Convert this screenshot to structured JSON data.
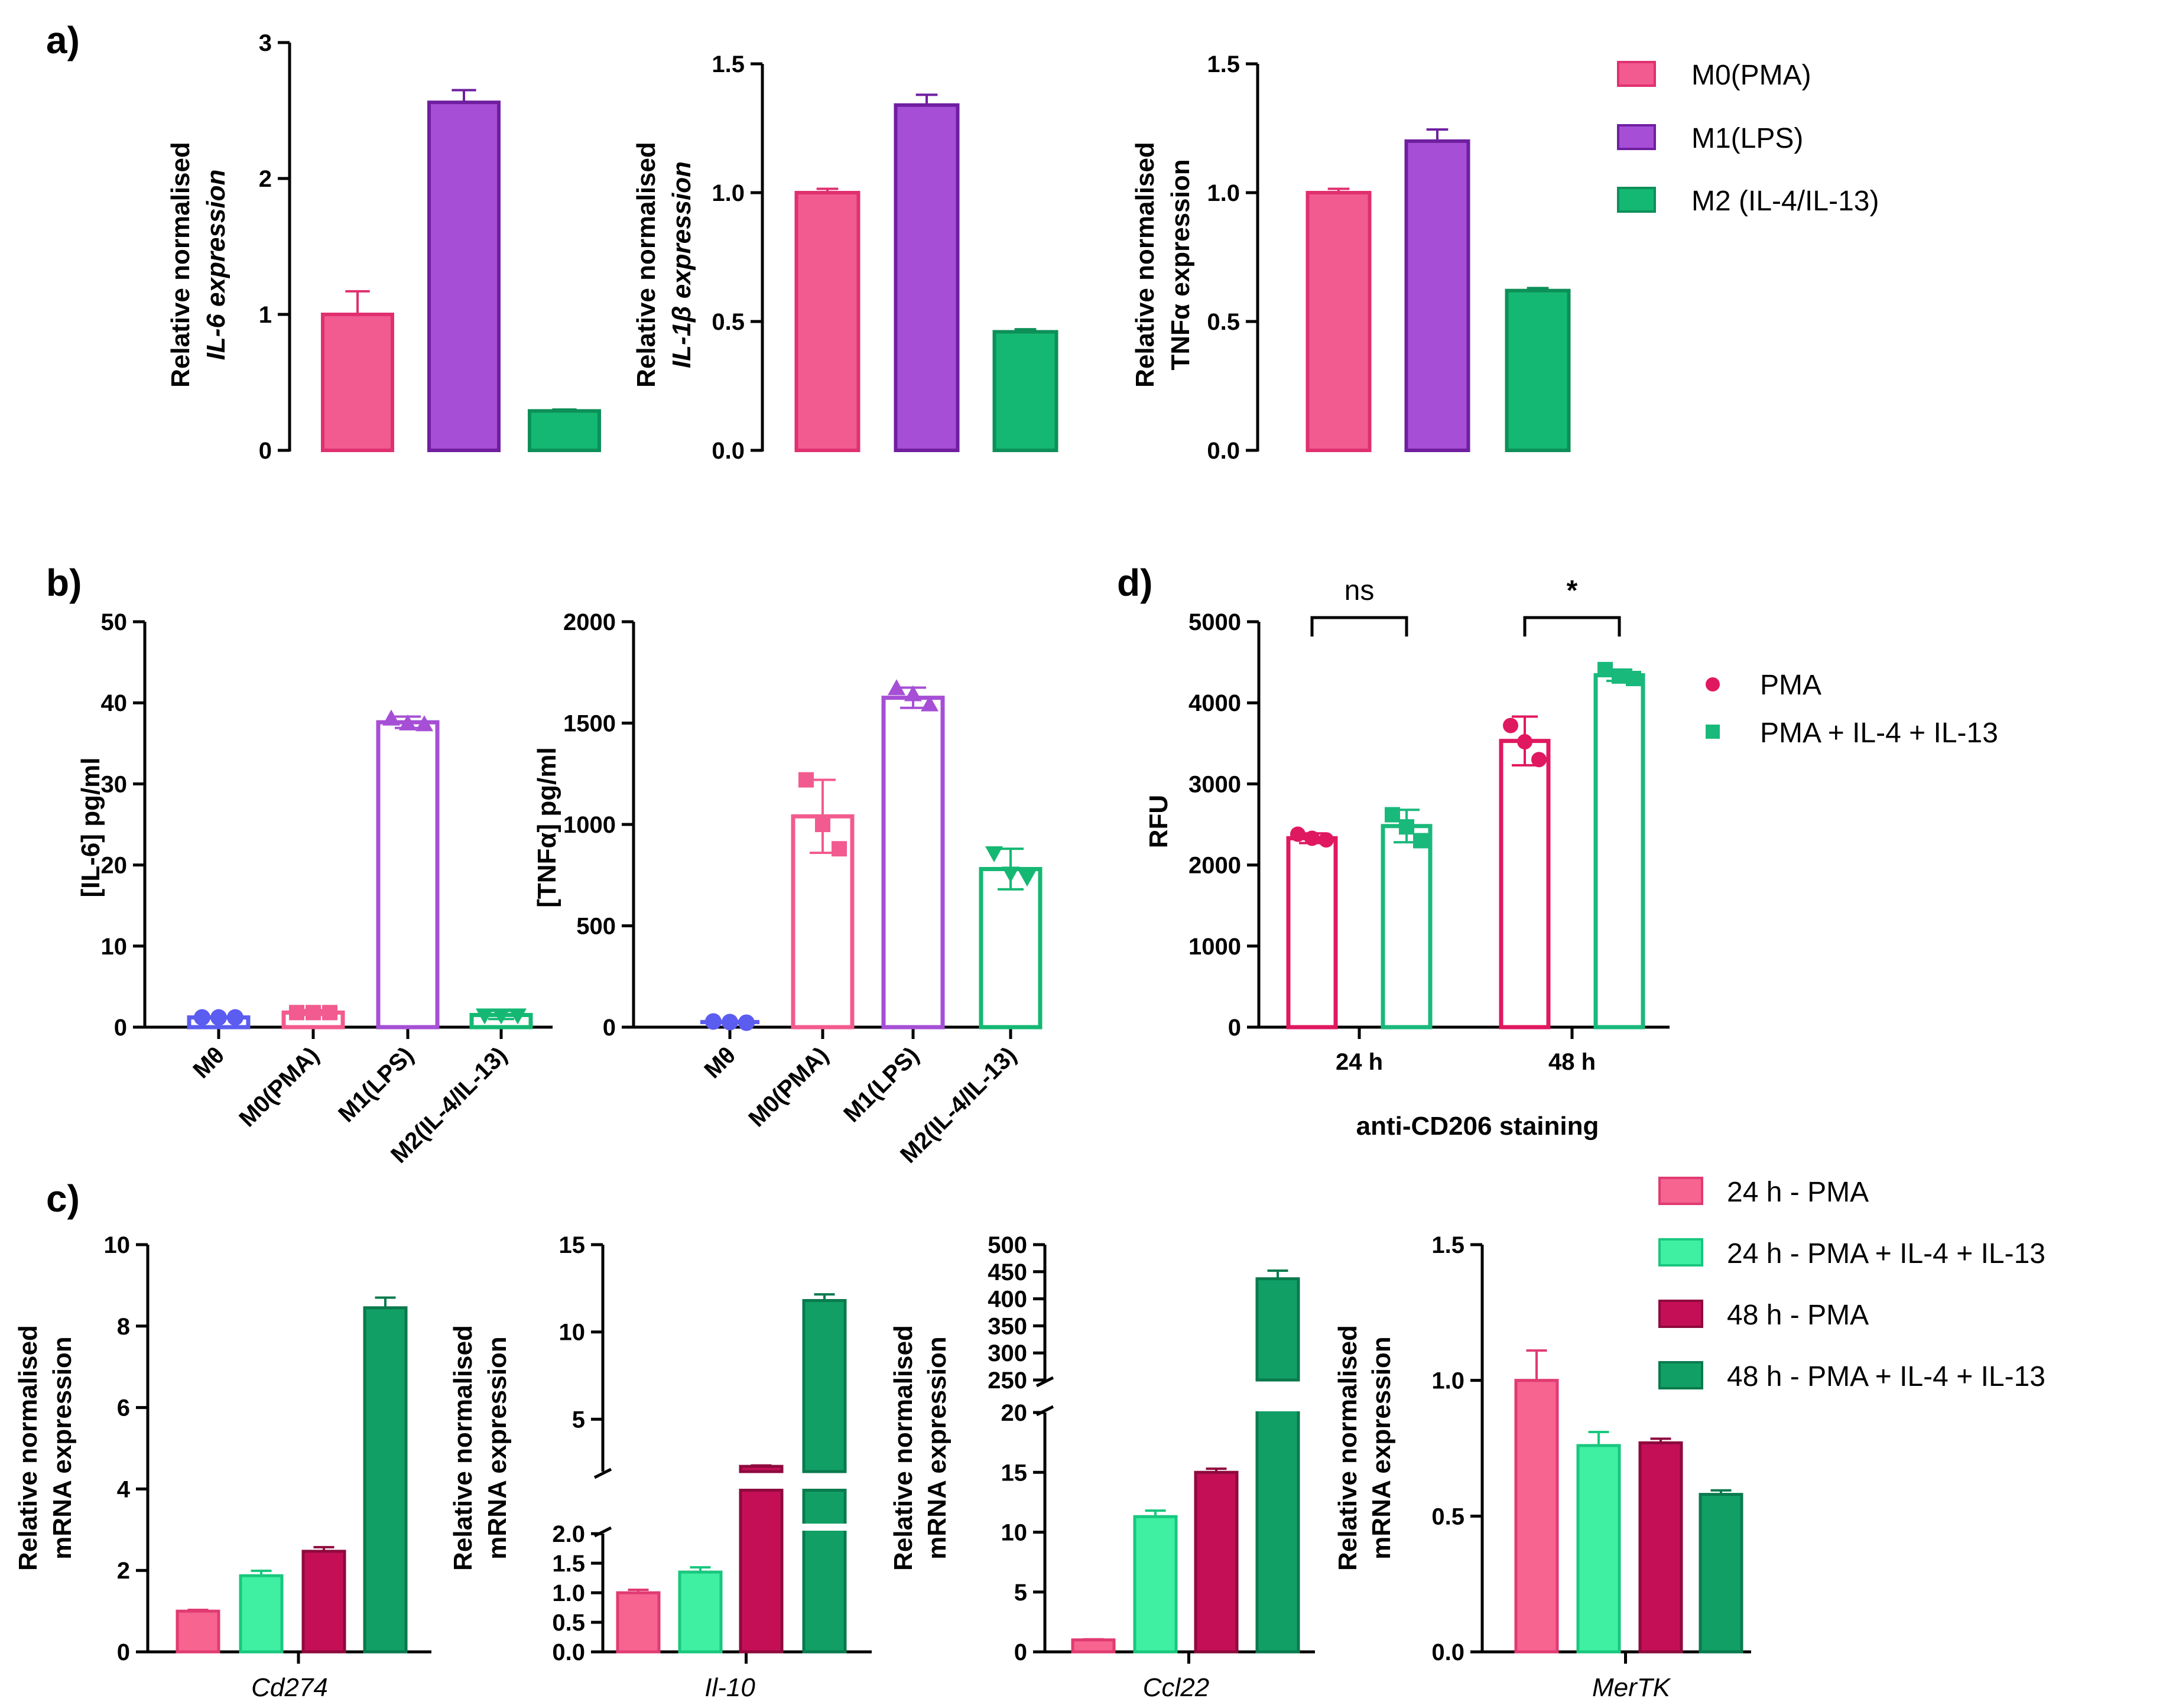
{
  "colors": {
    "m0": "#f25b8f",
    "m1": "#a64fd6",
    "m2": "#14b873",
    "mtheta": "#5b5cf0",
    "pma24": "#f6648f",
    "combo24": "#3ff0a3",
    "pma48": "#c40f56",
    "combo48": "#119f66",
    "d_pma": "#e0185f",
    "d_combo": "#19b97b"
  },
  "panel_labels": {
    "a": "a)",
    "b": "b)",
    "c": "c)",
    "d": "d)"
  },
  "legend_a": [
    "M0(PMA)",
    "M1(LPS)",
    "M2 (IL-4/IL-13)"
  ],
  "legend_c": [
    "24 h - PMA",
    "24 h - PMA + IL-4 + IL-13",
    "48 h - PMA",
    "48 h - PMA + IL-4 + IL-13"
  ],
  "legend_d": [
    "PMA",
    "PMA + IL-4 + IL-13"
  ],
  "chart_data": [
    {
      "id": "a1",
      "type": "bar",
      "ylabel_line1": "Relative normalised",
      "ylabel_line2": "IL-6 expression",
      "categories": [
        "M0(PMA)",
        "M1(LPS)",
        "M2 (IL-4/IL-13)"
      ],
      "values": [
        1.0,
        2.56,
        0.29
      ],
      "errors": [
        0.17,
        0.09,
        0.01
      ],
      "ylim": [
        0,
        3
      ],
      "yticks": [
        "0",
        "1",
        "2",
        "3"
      ]
    },
    {
      "id": "a2",
      "type": "bar",
      "ylabel_line1": "Relative normalised",
      "ylabel_line2": "IL-1β expression",
      "categories": [
        "M0(PMA)",
        "M1(LPS)",
        "M2 (IL-4/IL-13)"
      ],
      "values": [
        1.0,
        1.34,
        0.46
      ],
      "errors": [
        0.015,
        0.04,
        0.01
      ],
      "ylim": [
        0,
        1.5
      ],
      "yticks": [
        "0.0",
        "0.5",
        "1.0",
        "1.5"
      ]
    },
    {
      "id": "a3",
      "type": "bar",
      "ylabel_line1": "Relative normalised",
      "ylabel_line2": "TNFα expression",
      "categories": [
        "M0(PMA)",
        "M1(LPS)",
        "M2 (IL-4/IL-13)"
      ],
      "values": [
        1.0,
        1.2,
        0.62
      ],
      "errors": [
        0.015,
        0.045,
        0.01
      ],
      "ylim": [
        0,
        1.5
      ],
      "yticks": [
        "0.0",
        "0.5",
        "1.0",
        "1.5"
      ]
    },
    {
      "id": "b1",
      "type": "bar",
      "ylabel": "[IL-6] pg/ml",
      "categories": [
        "Mθ",
        "M0(PMA)",
        "M1(LPS)",
        "M2(IL-4/IL-13)"
      ],
      "values": [
        1.2,
        1.8,
        37.6,
        1.5
      ],
      "errors": [
        0,
        0.3,
        0.7,
        0.5
      ],
      "points": [
        [
          1.2,
          1.2,
          1.2
        ],
        [
          1.8,
          1.8,
          1.8
        ],
        [
          38.0,
          37.4,
          37.3
        ],
        [
          1.5,
          1.5,
          1.5
        ]
      ],
      "ylim": [
        0,
        50
      ],
      "yticks": [
        "0",
        "10",
        "20",
        "30",
        "40",
        "50"
      ]
    },
    {
      "id": "b2",
      "type": "bar",
      "ylabel": "[TNFα] pg/ml",
      "categories": [
        "Mθ",
        "M0(PMA)",
        "M1(LPS)",
        "M2(IL-4/IL-13)"
      ],
      "values": [
        25,
        1040,
        1625,
        780
      ],
      "errors": [
        5,
        180,
        50,
        100
      ],
      "points": [
        [
          28,
          25,
          22
        ],
        [
          1220,
          1000,
          880
        ],
        [
          1670,
          1640,
          1590
        ],
        [
          860,
          760,
          740
        ]
      ],
      "ylim": [
        0,
        2000
      ],
      "yticks": [
        "0",
        "500",
        "1000",
        "1500",
        "2000"
      ]
    },
    {
      "id": "c1",
      "type": "bar",
      "gene": "Cd274",
      "ylabel_line1": "Relative normalised",
      "ylabel_line2": "mRNA expression",
      "categories": [
        "24 h - PMA",
        "24 h - PMA + IL-4 + IL-13",
        "48 h - PMA",
        "48 h - PMA + IL-4 + IL-13"
      ],
      "values": [
        1.0,
        1.87,
        2.47,
        8.45
      ],
      "errors": [
        0.03,
        0.12,
        0.1,
        0.25
      ],
      "ylim": [
        0,
        10
      ],
      "yticks": [
        "0",
        "2",
        "4",
        "6",
        "8",
        "10"
      ]
    },
    {
      "id": "c2",
      "type": "bar",
      "gene": "Il-10",
      "broken_axis": true,
      "ylabel_line1": "Relative normalised",
      "ylabel_line2": "mRNA expression",
      "categories": [
        "24 h - PMA",
        "24 h - PMA + IL-4 + IL-13",
        "48 h - PMA",
        "48 h - PMA + IL-4 + IL-13"
      ],
      "values": [
        1.0,
        1.35,
        2.3,
        11.8
      ],
      "errors": [
        0.05,
        0.08,
        0.05,
        0.35
      ],
      "ylim_lower": [
        0,
        2
      ],
      "ylim_upper": [
        2,
        15
      ],
      "yticks_lower": [
        "0.0",
        "0.5",
        "1.0",
        "1.5",
        "2.0"
      ],
      "yticks_upper": [
        "5",
        "10",
        "15"
      ]
    },
    {
      "id": "c3",
      "type": "bar",
      "gene": "Ccl22",
      "broken_axis": true,
      "ylabel_line1": "Relative normalised",
      "ylabel_line2": "mRNA expression",
      "categories": [
        "24 h - PMA",
        "24 h - PMA + IL-4 + IL-13",
        "48 h - PMA",
        "48 h - PMA + IL-4 + IL-13"
      ],
      "values": [
        1.0,
        11.3,
        15.0,
        437
      ],
      "errors": [
        0.05,
        0.5,
        0.3,
        15
      ],
      "ylim_lower": [
        0,
        20
      ],
      "ylim_upper": [
        250,
        500
      ],
      "yticks_lower": [
        "0",
        "5",
        "10",
        "15",
        "20"
      ],
      "yticks_upper": [
        "250",
        "300",
        "350",
        "400",
        "450",
        "500"
      ]
    },
    {
      "id": "c4",
      "type": "bar",
      "gene": "MerTK",
      "ylabel_line1": "Relative normalised",
      "ylabel_line2": "mRNA expression",
      "categories": [
        "24 h - PMA",
        "24 h - PMA + IL-4 + IL-13",
        "48 h - PMA",
        "48 h - PMA + IL-4 + IL-13"
      ],
      "values": [
        1.0,
        0.76,
        0.77,
        0.58
      ],
      "errors": [
        0.11,
        0.05,
        0.015,
        0.015
      ],
      "ylim": [
        0,
        1.5
      ],
      "yticks": [
        "0.0",
        "0.5",
        "1.0",
        "1.5"
      ]
    },
    {
      "id": "d",
      "type": "bar",
      "ylabel": "RFU",
      "xlabel": "anti-CD206 staining",
      "categories": [
        "24 h",
        "48 h"
      ],
      "series": [
        {
          "name": "PMA",
          "values": [
            2330,
            3530
          ],
          "errors": [
            60,
            300
          ],
          "points": [
            [
              2380,
              2330,
              2310
            ],
            [
              3720,
              3520,
              3300
            ]
          ]
        },
        {
          "name": "PMA + IL-4 + IL-13",
          "values": [
            2480,
            4340
          ],
          "errors": [
            200,
            70
          ],
          "points": [
            [
              2620,
              2470,
              2300
            ],
            [
              4410,
              4330,
              4300
            ]
          ]
        }
      ],
      "ylim": [
        0,
        5000
      ],
      "yticks": [
        "0",
        "1000",
        "2000",
        "3000",
        "4000",
        "5000"
      ],
      "significance": [
        "ns",
        "*"
      ]
    }
  ]
}
